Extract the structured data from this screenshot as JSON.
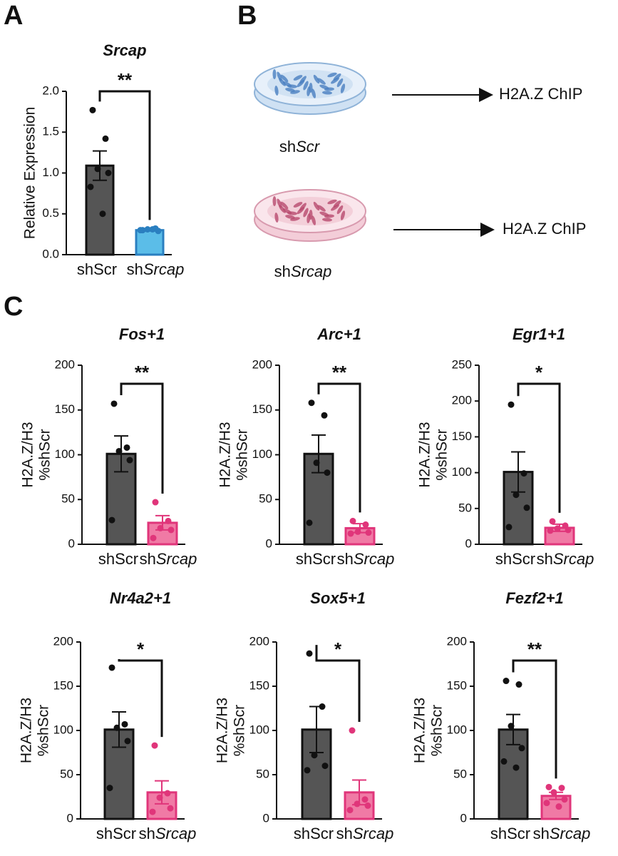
{
  "panel_labels": [
    "A",
    "B",
    "C"
  ],
  "diagram": {
    "conditions": [
      {
        "label": "shScr",
        "arrow_label": "H2A.Z ChIP",
        "color": "#4a7fc0"
      },
      {
        "label": "shSrcap",
        "arrow_label": "H2A.Z ChIP",
        "color": "#b84a6e"
      }
    ]
  },
  "chart_data": [
    {
      "type": "bar",
      "title": "Srcap",
      "ylabel": [
        "Relative Expression"
      ],
      "categories": [
        "shScr",
        "shSrcap"
      ],
      "values": [
        1.09,
        0.3
      ],
      "errors": [
        0.18,
        0.01
      ],
      "points": [
        [
          1.77,
          1.42,
          1.05,
          1.0,
          0.83,
          0.5
        ],
        [
          0.3,
          0.32,
          0.31,
          0.29,
          0.3,
          0.31
        ]
      ],
      "colors": [
        "#555555",
        "#5bbde8"
      ],
      "edge_colors": [
        "#111111",
        "#2a7fc0"
      ],
      "ylim": [
        0,
        2.0
      ],
      "yticks": [
        {
          "value": 0,
          "label": "0.0"
        },
        {
          "value": 0.5,
          "label": "0.5"
        },
        {
          "value": 1.0,
          "label": "1.0"
        },
        {
          "value": 1.5,
          "label": "1.5"
        },
        {
          "value": 2.0,
          "label": "2.0"
        }
      ],
      "significance": "**"
    },
    {
      "type": "bar",
      "title": "Fos+1",
      "ylabel": [
        "H2A.Z/H3",
        "%shScr"
      ],
      "categories": [
        "shScr",
        "shSrcap"
      ],
      "values": [
        101,
        24
      ],
      "errors": [
        20,
        8
      ],
      "points": [
        [
          157,
          108,
          104,
          94,
          27
        ],
        [
          47,
          26,
          18,
          16,
          7
        ]
      ],
      "colors": [
        "#555555",
        "#f07aa5"
      ],
      "edge_colors": [
        "#111111",
        "#e0357a"
      ],
      "ylim": [
        0,
        200
      ],
      "yticks": [
        0,
        50,
        100,
        150,
        200
      ],
      "significance": "**"
    },
    {
      "type": "bar",
      "title": "Arc+1",
      "ylabel": [
        "H2A.Z/H3",
        "%shScr"
      ],
      "categories": [
        "shScr",
        "shSrcap"
      ],
      "values": [
        101,
        18
      ],
      "errors": [
        21,
        5
      ],
      "points": [
        [
          158,
          144,
          91,
          80,
          24
        ],
        [
          26,
          22,
          14,
          13,
          12
        ]
      ],
      "colors": [
        "#555555",
        "#f07aa5"
      ],
      "edge_colors": [
        "#111111",
        "#e0357a"
      ],
      "ylim": [
        0,
        200
      ],
      "yticks": [
        0,
        50,
        100,
        150,
        200
      ],
      "significance": "**"
    },
    {
      "type": "bar",
      "title": "Egr1+1",
      "ylabel": [
        "H2A.Z/H3",
        "%shScr"
      ],
      "categories": [
        "shScr",
        "shSrcap"
      ],
      "values": [
        101,
        23
      ],
      "errors": [
        28,
        5
      ],
      "points": [
        [
          195,
          99,
          69,
          51,
          24
        ],
        [
          32,
          26,
          22,
          20,
          19
        ]
      ],
      "colors": [
        "#555555",
        "#f07aa5"
      ],
      "edge_colors": [
        "#111111",
        "#e0357a"
      ],
      "ylim": [
        0,
        250
      ],
      "yticks": [
        0,
        50,
        100,
        150,
        200,
        250
      ],
      "significance": "*"
    },
    {
      "type": "bar",
      "title": "Nr4a2+1",
      "ylabel": [
        "H2A.Z/H3",
        "%shScr"
      ],
      "categories": [
        "shScr",
        "shSrcap"
      ],
      "values": [
        101,
        30
      ],
      "errors": [
        20,
        13
      ],
      "points": [
        [
          171,
          107,
          103,
          88,
          35
        ],
        [
          83,
          29,
          24,
          12,
          8
        ]
      ],
      "colors": [
        "#555555",
        "#f07aa5"
      ],
      "edge_colors": [
        "#111111",
        "#e0357a"
      ],
      "ylim": [
        0,
        200
      ],
      "yticks": [
        0,
        50,
        100,
        150,
        200
      ],
      "significance": "*"
    },
    {
      "type": "bar",
      "title": "Sox5+1",
      "ylabel": [
        "H2A.Z/H3",
        "%shScr"
      ],
      "categories": [
        "shScr",
        "shSrcap"
      ],
      "values": [
        101,
        30
      ],
      "errors": [
        26,
        14
      ],
      "points": [
        [
          187,
          127,
          72,
          60,
          55
        ],
        [
          100,
          22,
          17,
          15,
          10
        ]
      ],
      "colors": [
        "#555555",
        "#f07aa5"
      ],
      "edge_colors": [
        "#111111",
        "#e0357a"
      ],
      "ylim": [
        0,
        200
      ],
      "yticks": [
        0,
        50,
        100,
        150,
        200
      ],
      "significance": "*"
    },
    {
      "type": "bar",
      "title": "Fezf2+1",
      "ylabel": [
        "H2A.Z/H3",
        "%shScr"
      ],
      "categories": [
        "shScr",
        "shSrcap"
      ],
      "values": [
        101,
        26
      ],
      "errors": [
        17,
        4
      ],
      "points": [
        [
          156,
          152,
          105,
          80,
          65,
          58
        ],
        [
          36,
          35,
          30,
          22,
          18,
          14
        ]
      ],
      "colors": [
        "#555555",
        "#f07aa5"
      ],
      "edge_colors": [
        "#111111",
        "#e0357a"
      ],
      "ylim": [
        0,
        200
      ],
      "yticks": [
        0,
        50,
        100,
        150,
        200
      ],
      "significance": "**"
    }
  ]
}
